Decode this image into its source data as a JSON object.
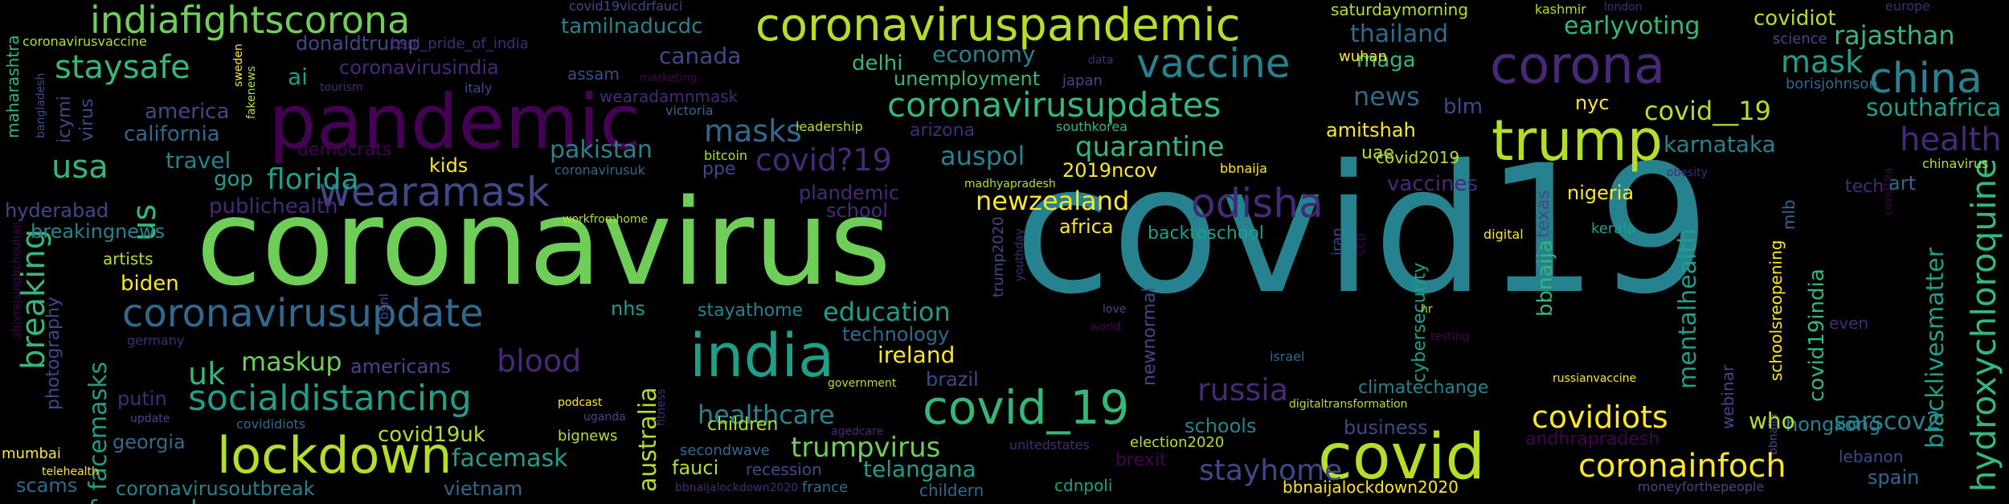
{
  "background": "#000000",
  "palette": {
    "dark_purple": "#440154",
    "purple": "#482878",
    "indigo": "#3e4989",
    "blue": "#31688e",
    "teal": "#26828e",
    "teal_green": "#1f9e89",
    "green": "#35b779",
    "light_green": "#6ece58",
    "lime": "#b5de2b",
    "yellow": "#fde725"
  },
  "words": {
    "covid19": "covid19",
    "coronavirus": "coronavirus",
    "pandemic": "pandemic",
    "coronaviruspandemic": "coronaviruspandemic",
    "indiafightscorona": "indiafightscorona",
    "corona": "corona",
    "covid": "covid",
    "trump": "trump",
    "lockdown": "lockdown",
    "wearamask": "wearamask",
    "india": "india",
    "vaccine": "vaccine",
    "coronavirusupdates": "coronavirusupdates",
    "coronavirusupdate": "coronavirusupdate",
    "socialdistancing": "socialdistancing",
    "covid_19": "covid_19",
    "odisha": "odisha",
    "china": "china",
    "hydroxychloroquine": "hydroxychloroquine",
    "staysafe": "staysafe",
    "breaking": "breaking",
    "usa": "usa",
    "us": "us",
    "florida": "florida",
    "masks": "masks",
    "mask": "mask",
    "covidiots": "covidiots",
    "coronainfoch": "coronainfoch",
    "health": "health",
    "russia": "russia",
    "trumpvirus": "trumpvirus",
    "healthcare": "healthcare",
    "stayhome": "stayhome",
    "newzealand": "newzealand",
    "quarantine": "quarantine",
    "facemasks": "facemasks",
    "facemask": "facemask",
    "blood": "blood",
    "uk": "uk",
    "maskup": "maskup",
    "education": "education",
    "covid__19": "covid__19",
    "covid_19_alt": "covid19",
    "sarscov2": "sarscov2",
    "mentalhealth": "mentalhealth",
    "blacklivesmatter": "blacklivesmatter",
    "australia": "australia",
    "covid19uk": "covid19uk",
    "coronavirusoutbreak": "coronavirusoutbreak",
    "telangana": "telangana",
    "rajasthan": "rajasthan",
    "southafrica": "southafrica",
    "covid19india": "covid19india",
    "news": "news",
    "karnataka": "karnataka",
    "auspol": "auspol",
    "economy": "economy",
    "canada": "canada",
    "thailand": "thailand",
    "earlyvoting": "earlyvoting",
    "covidiot": "covidiot",
    "tamilnaducdc": "tamilnaducdc",
    "donaldtrump": "donaldtrump",
    "coronavirusindia": "coronavirusindia",
    "unemployment": "unemployment",
    "delhi": "delhi",
    "maga": "maga",
    "america": "america",
    "california": "california",
    "travel": "travel",
    "gop": "gop",
    "kids": "kids",
    "pakistan": "pakistan",
    "publichealth": "publichealth",
    "hyderabad": "hyderabad",
    "breakingnews": "breakingnews",
    "artists": "artists",
    "biden": "biden",
    "photography": "photography",
    "putin": "putin",
    "georgia": "georgia",
    "scams": "scams",
    "mumbai": "mumbai",
    "telehealth": "telehealth",
    "vietnam": "vietnam",
    "americans": "americans",
    "ireland": "ireland",
    "technology": "technology",
    "brazil": "brazil",
    "children": "children",
    "fauci": "fauci",
    "recession": "recession",
    "france": "france",
    "childern": "childern",
    "secondwave": "secondwave",
    "stayathome": "stayathome",
    "nhs": "nhs",
    "school": "school",
    "plandemic": "plandemic",
    "ppe": "ppe",
    "africa": "africa",
    "backtoschool": "backtoschool",
    "newnormal": "newnormal",
    "cybersecurity": "cybersecurity",
    "business": "business",
    "schools": "schools",
    "climatechange": "climatechange",
    "brexit": "brexit",
    "election2020": "election2020",
    "cdnpoli": "cdnpoli",
    "bbnaijalockdown2020": "bbnaijalockdown2020",
    "andhrapradesh": "andhrapradesh",
    "hongkong": "hongkong",
    "who": "who",
    "spain": "spain",
    "lebanon": "lebanon",
    "nigeria": "nigeria",
    "vaccines": "vaccines",
    "uae": "uae",
    "covid2019": "covid2019",
    "amitshah": "amitshah",
    "nyc": "nyc",
    "blm": "blm",
    "2019ncov": "2019ncov",
    "bbnaija": "bbnaija",
    "texas": "texas",
    "mlb": "mlb",
    "schoolsreopening": "schoolsreopening",
    "tech": "tech",
    "art": "art",
    "webinar": "webinar",
    "kerala": "kerala",
    "digital": "digital",
    "iran": "iran",
    "ccp": "ccp",
    "ai": "ai",
    "icymi": "icymi",
    "virus": "virus",
    "maharashtra": "maharashtra",
    "assam": "assam",
    "wearadamnmask": "wearadamnmask",
    "arizona": "arizona",
    "democrats": "democrats",
    "bitcoin": "bitcoin",
    "coronavirusuk": "coronavirusuk",
    "leadership": "leadership",
    "victoria": "victoria",
    "madhyapradesh": "madhyapradesh",
    "southkorea": "southkorea",
    "japan": "japan",
    "wuhan": "wuhan",
    "saturdaymorning": "saturdaymorning",
    "kashmir": "kashmir",
    "london": "london",
    "science": "science",
    "borisjohnson": "borisjohnson",
    "europe": "europe",
    "obesity": "obesity",
    "chinavirus": "chinavirus",
    "coronavirusvaccine": "coronavirusvaccine",
    "bangladesh": "bangladesh",
    "sweden": "sweden",
    "fakenews": "fakenews",
    "tourism": "tourism",
    "italy": "italy",
    "bsnl_pride_of_india": "bsnl_pride_of_india",
    "covid19vicdrfauci": "covid19vicdrfauci",
    "marketing": "marketing",
    "data": "data",
    "germany": "germany",
    "bsnl": "bsnl",
    "workfromhome": "workfromhome",
    "trump2020": "trump2020",
    "youthday": "youthday",
    "love": "love",
    "world": "world",
    "hr": "hr",
    "testing": "testing",
    "israel": "israel",
    "government": "government",
    "fitness": "fitness",
    "agedcare": "agedcare",
    "unitedstates": "unitedstates",
    "digitaltransformation": "digitaltransformation",
    "russianvaccine": "russianvaccine",
    "podcast": "podcast",
    "uganda": "uganda",
    "update": "update",
    "covididiots": "covididiots",
    "bignews": "bignews",
    "even": "even",
    "moneyforthepeople": "moneyforthepeople",
    "covid_q_19": "covid?19",
    "shivrajsinghchouhan": "shivrajsinghchouhan",
    "covid19a": "covid19a"
  }
}
